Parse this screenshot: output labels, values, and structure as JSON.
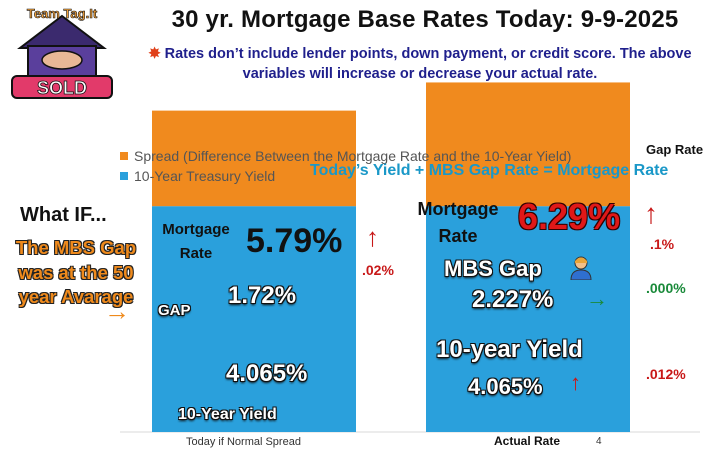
{
  "header": {
    "title": "30 yr. Mortgage Base Rates Today: 9-9-2025",
    "note": "Rates don’t include lender points, down payment, or credit score. The above variables will increase or decrease your actual rate.",
    "logo_text_top": "Team Tag.It",
    "logo_text_bottom": "SOLD"
  },
  "legend": {
    "spread": "Spread (Difference Between the Mortgage Rate and the 10-Year Yield)",
    "yield": "10-Year Treasury Yield"
  },
  "gap_rate_header": "Gap Rate",
  "formula": "Today’s  Yield +  MBS Gap Rate = Mortgage Rate",
  "left": {
    "what_if": "What IF...",
    "question": "The MBS Gap was at the 50 year Avarage",
    "mortgage_rate_label": "Mortgage Rate",
    "rate": "5.79%",
    "rate_change": ".02%",
    "gap_tag": "GAP",
    "gap_value": "1.72%",
    "yield_value": "4.065%",
    "bar_caption": "10-Year Yield",
    "axis_label": "Today if Normal Spread"
  },
  "right": {
    "mortgage_rate_label": "Mortgage Rate",
    "rate": "6.29%",
    "rate_change": ".1%",
    "mbs_gap_label": "MBS Gap",
    "gap_value": "2.227%",
    "gap_change": ".000%",
    "yield_label": "10-year Yield",
    "yield_value": "4.065%",
    "yield_change": ".012%",
    "axis_label": "Actual Rate",
    "tick": "4"
  },
  "colors": {
    "spread": "#f08a1e",
    "yield": "#2aa0dc",
    "up": "#c81818",
    "flat": "#1a8a3a",
    "formula": "#1a98c8"
  },
  "chart_data": {
    "type": "bar",
    "stacked": true,
    "categories": [
      "Today if Normal Spread",
      "Actual Rate"
    ],
    "series": [
      {
        "name": "10-Year Treasury Yield",
        "values": [
          4.065,
          4.065
        ]
      },
      {
        "name": "Spread (Difference Between the Mortgage Rate and the 10-Year Yield)",
        "values": [
          1.72,
          2.227
        ]
      }
    ],
    "ylim": [
      0,
      7.2
    ],
    "legend": "top-left",
    "grid": false
  }
}
